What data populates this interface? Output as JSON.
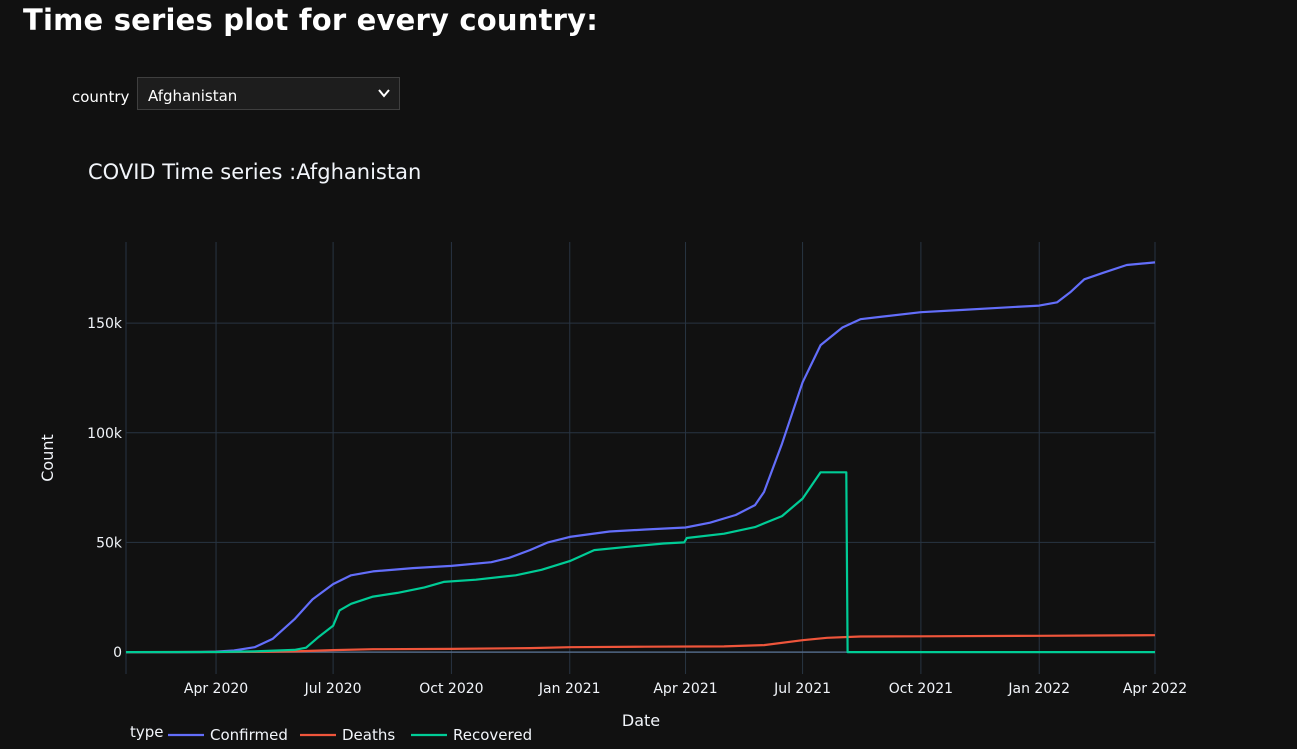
{
  "page": {
    "heading": "Time series plot for every country:"
  },
  "filter": {
    "label": "country",
    "selected": "Afghanistan"
  },
  "colors": {
    "background": "#111111",
    "grid": "#283442",
    "text": "#f2f5fa",
    "Confirmed": "#636efa",
    "Deaths": "#ef553b",
    "Recovered": "#00cc96"
  },
  "chart_data": {
    "type": "line",
    "title": "COVID Time series :Afghanistan",
    "xlabel": "Date",
    "ylabel": "Count",
    "xlim": [
      "2020-01-22",
      "2022-04-01"
    ],
    "ylim": [
      -10000,
      187000
    ],
    "grid": true,
    "legend": {
      "title": "type",
      "placement": "bottom-left, horizontal"
    },
    "x_ticks": [
      {
        "date": "2020-04-01",
        "label": "Apr 2020"
      },
      {
        "date": "2020-07-01",
        "label": "Jul 2020"
      },
      {
        "date": "2020-10-01",
        "label": "Oct 2020"
      },
      {
        "date": "2021-01-01",
        "label": "Jan 2021"
      },
      {
        "date": "2021-04-01",
        "label": "Apr 2021"
      },
      {
        "date": "2021-07-01",
        "label": "Jul 2021"
      },
      {
        "date": "2021-10-01",
        "label": "Oct 2021"
      },
      {
        "date": "2022-01-01",
        "label": "Jan 2022"
      },
      {
        "date": "2022-04-01",
        "label": "Apr 2022"
      }
    ],
    "y_ticks": [
      {
        "value": 0,
        "label": "0"
      },
      {
        "value": 50000,
        "label": "50k"
      },
      {
        "value": 100000,
        "label": "100k"
      },
      {
        "value": 150000,
        "label": "150k"
      }
    ],
    "series": [
      {
        "name": "Confirmed",
        "points": [
          [
            "2020-01-22",
            0
          ],
          [
            "2020-03-01",
            0
          ],
          [
            "2020-03-20",
            50
          ],
          [
            "2020-04-01",
            200
          ],
          [
            "2020-04-15",
            700
          ],
          [
            "2020-05-01",
            2200
          ],
          [
            "2020-05-15",
            6000
          ],
          [
            "2020-06-01",
            15000
          ],
          [
            "2020-06-15",
            24000
          ],
          [
            "2020-07-01",
            31000
          ],
          [
            "2020-07-15",
            35000
          ],
          [
            "2020-08-01",
            36800
          ],
          [
            "2020-09-01",
            38300
          ],
          [
            "2020-10-01",
            39300
          ],
          [
            "2020-11-01",
            41000
          ],
          [
            "2020-11-15",
            43000
          ],
          [
            "2020-12-01",
            46500
          ],
          [
            "2020-12-15",
            50000
          ],
          [
            "2021-01-01",
            52500
          ],
          [
            "2021-02-01",
            55000
          ],
          [
            "2021-03-01",
            55900
          ],
          [
            "2021-04-01",
            56800
          ],
          [
            "2021-04-20",
            59000
          ],
          [
            "2021-05-10",
            62500
          ],
          [
            "2021-05-25",
            67000
          ],
          [
            "2021-06-01",
            73000
          ],
          [
            "2021-06-15",
            95000
          ],
          [
            "2021-07-01",
            123000
          ],
          [
            "2021-07-15",
            140000
          ],
          [
            "2021-08-01",
            148000
          ],
          [
            "2021-08-15",
            151800
          ],
          [
            "2021-09-01",
            153000
          ],
          [
            "2021-10-01",
            155000
          ],
          [
            "2021-11-01",
            156000
          ],
          [
            "2021-12-01",
            157000
          ],
          [
            "2022-01-01",
            158000
          ],
          [
            "2022-01-15",
            159500
          ],
          [
            "2022-01-25",
            164000
          ],
          [
            "2022-02-05",
            170000
          ],
          [
            "2022-02-20",
            173000
          ],
          [
            "2022-03-10",
            176500
          ],
          [
            "2022-04-01",
            177700
          ]
        ]
      },
      {
        "name": "Deaths",
        "points": [
          [
            "2020-01-22",
            0
          ],
          [
            "2020-04-01",
            10
          ],
          [
            "2020-05-01",
            80
          ],
          [
            "2020-06-01",
            300
          ],
          [
            "2020-07-01",
            900
          ],
          [
            "2020-08-01",
            1300
          ],
          [
            "2020-10-01",
            1450
          ],
          [
            "2020-12-01",
            1800
          ],
          [
            "2021-01-01",
            2200
          ],
          [
            "2021-03-01",
            2450
          ],
          [
            "2021-05-01",
            2600
          ],
          [
            "2021-06-01",
            3200
          ],
          [
            "2021-07-01",
            5400
          ],
          [
            "2021-07-20",
            6500
          ],
          [
            "2021-08-15",
            7100
          ],
          [
            "2021-10-01",
            7200
          ],
          [
            "2022-01-01",
            7400
          ],
          [
            "2022-02-15",
            7550
          ],
          [
            "2022-04-01",
            7680
          ]
        ]
      },
      {
        "name": "Recovered",
        "points": [
          [
            "2020-01-22",
            0
          ],
          [
            "2020-04-01",
            30
          ],
          [
            "2020-05-01",
            300
          ],
          [
            "2020-06-01",
            1000
          ],
          [
            "2020-06-10",
            2000
          ],
          [
            "2020-06-20",
            7000
          ],
          [
            "2020-07-01",
            12000
          ],
          [
            "2020-07-06",
            19000
          ],
          [
            "2020-07-15",
            22000
          ],
          [
            "2020-08-01",
            25300
          ],
          [
            "2020-08-20",
            27000
          ],
          [
            "2020-09-10",
            29500
          ],
          [
            "2020-09-25",
            32000
          ],
          [
            "2020-10-20",
            33000
          ],
          [
            "2020-11-20",
            35000
          ],
          [
            "2020-12-10",
            37500
          ],
          [
            "2021-01-01",
            41500
          ],
          [
            "2021-01-20",
            46500
          ],
          [
            "2021-02-15",
            48000
          ],
          [
            "2021-03-15",
            49500
          ],
          [
            "2021-03-31",
            50000
          ],
          [
            "2021-04-02",
            52000
          ],
          [
            "2021-05-01",
            54000
          ],
          [
            "2021-05-25",
            57000
          ],
          [
            "2021-06-15",
            62000
          ],
          [
            "2021-07-01",
            70000
          ],
          [
            "2021-07-15",
            82000
          ],
          [
            "2021-08-04",
            82000
          ],
          [
            "2021-08-05",
            0
          ],
          [
            "2022-04-01",
            0
          ]
        ]
      }
    ]
  }
}
